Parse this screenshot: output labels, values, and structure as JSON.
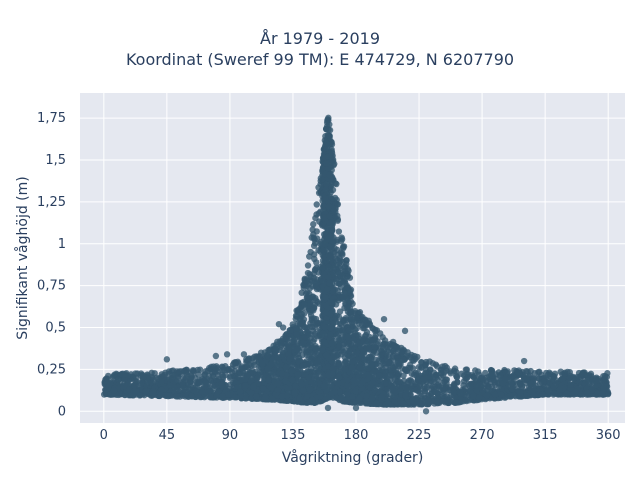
{
  "chart_data": {
    "type": "scatter",
    "title_line1": "År 1979 - 2019",
    "title_line2": "Koordinat (Sweref 99 TM): E 474729, N 6207790",
    "xlabel": "Vågriktning (grader)",
    "ylabel": "Signifikant våghöjd (m)",
    "xlim": [
      -17,
      372
    ],
    "ylim": [
      -0.07,
      1.9
    ],
    "x_ticks": [
      0,
      45,
      90,
      135,
      180,
      225,
      270,
      315,
      360
    ],
    "x_tick_labels": [
      "0",
      "45",
      "90",
      "135",
      "180",
      "225",
      "270",
      "315",
      "360"
    ],
    "y_ticks": [
      0,
      0.25,
      0.5,
      0.75,
      1,
      1.25,
      1.5,
      1.75
    ],
    "y_tick_labels": [
      "0",
      "0,25",
      "0,5",
      "0,75",
      "1",
      "1,25",
      "1,5",
      "1,75"
    ],
    "grid": true,
    "marker_color": "#34586f",
    "background_color": "#e5e8f0",
    "envelope": {
      "x": [
        0,
        45,
        90,
        120,
        135,
        145,
        150,
        155,
        158,
        160,
        165,
        170,
        180,
        200,
        225,
        250,
        270,
        315,
        360
      ],
      "y_max": [
        0.22,
        0.24,
        0.28,
        0.38,
        0.52,
        0.85,
        1.15,
        1.45,
        1.65,
        1.8,
        1.45,
        1.05,
        0.62,
        0.45,
        0.33,
        0.26,
        0.25,
        0.24,
        0.23
      ],
      "y_min": [
        0.1,
        0.09,
        0.08,
        0.07,
        0.06,
        0.05,
        0.05,
        0.06,
        0.07,
        0.08,
        0.08,
        0.06,
        0.05,
        0.04,
        0.04,
        0.05,
        0.07,
        0.1,
        0.1
      ]
    },
    "outliers": [
      {
        "x": 45,
        "y": 0.31
      },
      {
        "x": 80,
        "y": 0.33
      },
      {
        "x": 88,
        "y": 0.34
      },
      {
        "x": 100,
        "y": 0.34
      },
      {
        "x": 125,
        "y": 0.52
      },
      {
        "x": 128,
        "y": 0.5
      },
      {
        "x": 200,
        "y": 0.55
      },
      {
        "x": 215,
        "y": 0.48
      },
      {
        "x": 300,
        "y": 0.3
      },
      {
        "x": 160,
        "y": 0.02
      },
      {
        "x": 180,
        "y": 0.02
      },
      {
        "x": 230,
        "y": 0.0
      }
    ]
  }
}
